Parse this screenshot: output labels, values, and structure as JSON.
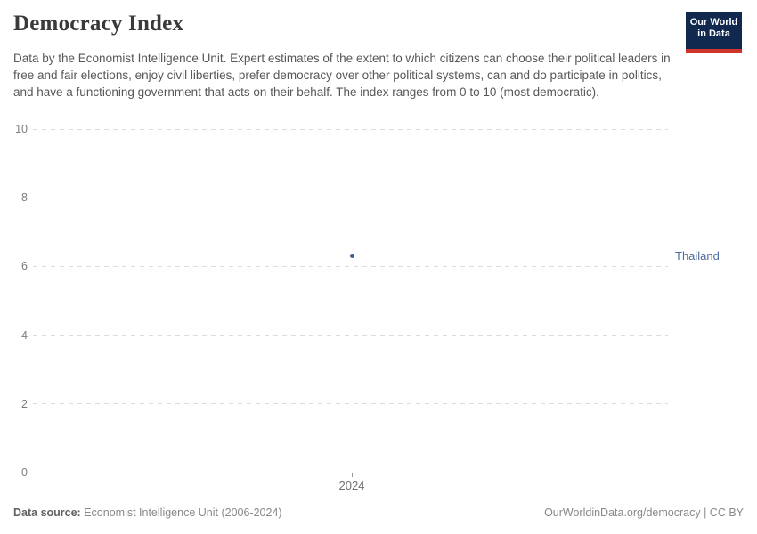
{
  "header": {
    "title": "Democracy Index",
    "subtitle": "Data by the Economist Intelligence Unit. Expert estimates of the extent to which citizens can choose their political leaders in free and fair elections, enjoy civil liberties, prefer democracy over other political systems, can and do participate in politics, and have a functioning government that acts on their behalf. The index ranges from 0 to 10 (most democratic).",
    "logo": {
      "line1": "Our World",
      "line2": "in Data",
      "bg_color": "#12294f",
      "accent_color": "#cf342c"
    }
  },
  "chart_data": {
    "type": "scatter",
    "title": "Democracy Index",
    "series": [
      {
        "name": "Thailand",
        "x": [
          2024
        ],
        "values": [
          6.3
        ],
        "color": "#3f5e8e",
        "label_color": "#4c6a9c"
      }
    ],
    "xticks": [
      "2024"
    ],
    "yticks": [
      0,
      2,
      4,
      6,
      8,
      10
    ],
    "ylim": [
      0,
      10
    ],
    "xlabel": "",
    "ylabel": "",
    "grid": "horizontal-dashed",
    "legend_position": "right-entity-label",
    "gridline_color": "#dcdcdc",
    "axis_color": "#9b9b9b"
  },
  "footer": {
    "source_label": "Data source:",
    "source_value": " Economist Intelligence Unit (2006-2024)",
    "credit": "OurWorldinData.org/democracy | CC BY"
  }
}
